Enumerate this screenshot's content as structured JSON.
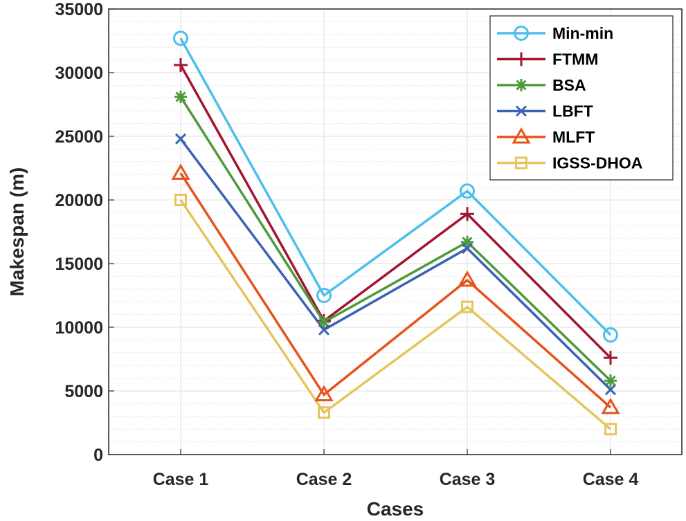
{
  "chart_data": {
    "type": "line",
    "title": "",
    "xlabel": "Cases",
    "ylabel": "Makespan (m)",
    "categories": [
      "Case 1",
      "Case 2",
      "Case 3",
      "Case 4"
    ],
    "ylim": [
      0,
      35000
    ],
    "yticks": [
      0,
      5000,
      10000,
      15000,
      20000,
      25000,
      30000,
      35000
    ],
    "grid": true,
    "minor_grid": true,
    "legend_position": "top-right",
    "series": [
      {
        "name": "Min-min",
        "marker": "circle",
        "color": "#4DBEEE",
        "values": [
          32700,
          12500,
          20700,
          9400
        ]
      },
      {
        "name": "FTMM",
        "marker": "plus",
        "color": "#A2142F",
        "values": [
          30600,
          10500,
          18900,
          7600
        ]
      },
      {
        "name": "BSA",
        "marker": "asterisk",
        "color": "#4E9A3A",
        "values": [
          28100,
          10400,
          16700,
          5800
        ]
      },
      {
        "name": "LBFT",
        "marker": "x",
        "color": "#3A62B5",
        "values": [
          24800,
          9800,
          16200,
          5100
        ]
      },
      {
        "name": "MLFT",
        "marker": "triangle",
        "color": "#E8521A",
        "values": [
          22100,
          4700,
          13700,
          3700
        ]
      },
      {
        "name": "IGSS-DHOA",
        "marker": "square",
        "color": "#E5C55E",
        "values": [
          20000,
          3300,
          11600,
          2000
        ]
      }
    ]
  }
}
